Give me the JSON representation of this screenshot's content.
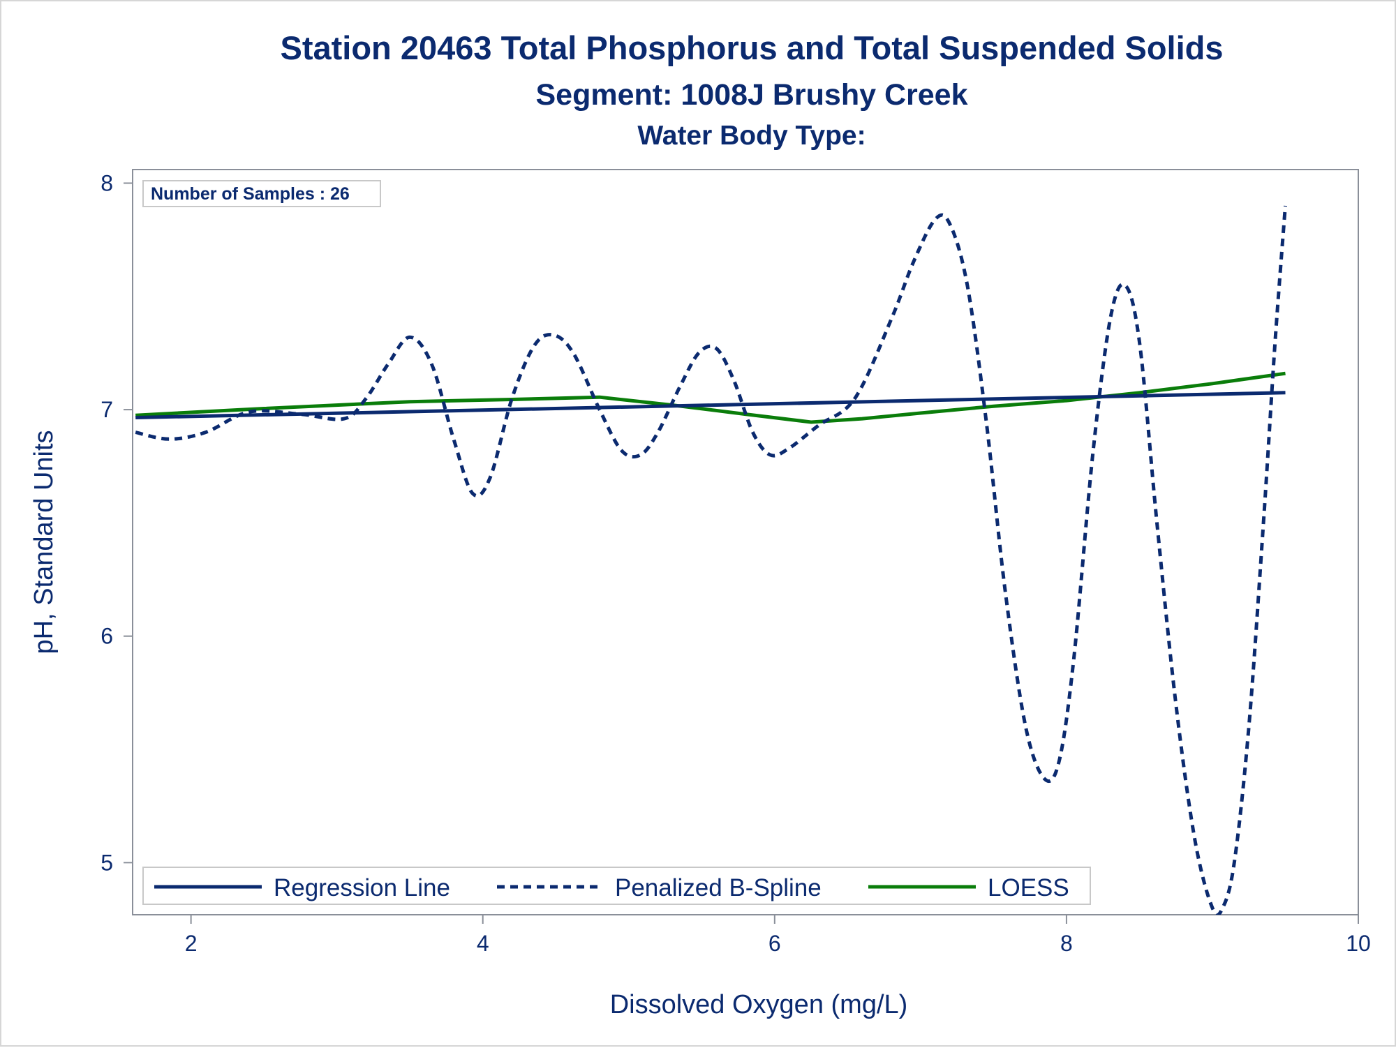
{
  "chart_data": {
    "type": "line",
    "title": "Station 20463  Total Phosphorus and Total Suspended Solids",
    "subtitle": "Segment: 1008J  Brushy Creek",
    "subtitle2": "Water Body Type:",
    "xlabel": "Dissolved Oxygen (mg/L)",
    "ylabel": "pH, Standard Units",
    "xlim": [
      1.6,
      10.0
    ],
    "ylim": [
      4.77,
      8.06
    ],
    "x_ticks": [
      2,
      4,
      6,
      8,
      10
    ],
    "y_ticks": [
      5,
      6,
      7,
      8
    ],
    "inset_label": "Number of Samples : 26",
    "legend": {
      "placement": "bottom-left",
      "entries": [
        {
          "label": "Regression Line",
          "style": "solid",
          "color": "#0b2a6f"
        },
        {
          "label": "Penalized B-Spline",
          "style": "dashed",
          "color": "#0b2a6f"
        },
        {
          "label": "LOESS",
          "style": "solid",
          "color": "#0a7d0a"
        }
      ]
    },
    "series": [
      {
        "name": "Regression Line",
        "style": "solid",
        "color": "#0b2a6f",
        "x": [
          1.62,
          9.5
        ],
        "y": [
          6.965,
          7.075
        ]
      },
      {
        "name": "Penalized B-Spline",
        "style": "dashed",
        "color": "#0b2a6f",
        "x": [
          1.62,
          1.85,
          2.1,
          2.4,
          2.75,
          3.05,
          3.2,
          3.35,
          3.5,
          3.65,
          3.8,
          3.93,
          4.05,
          4.2,
          4.35,
          4.48,
          4.62,
          4.8,
          4.95,
          5.08,
          5.2,
          5.35,
          5.48,
          5.6,
          5.72,
          5.85,
          5.97,
          6.1,
          6.3,
          6.55,
          6.8,
          6.95,
          7.1,
          7.2,
          7.32,
          7.45,
          7.58,
          7.72,
          7.85,
          7.95,
          8.05,
          8.18,
          8.3,
          8.4,
          8.5,
          8.62,
          8.75,
          8.88,
          9.0,
          9.07,
          9.15,
          9.25,
          9.35,
          9.43,
          9.5
        ],
        "y": [
          6.9,
          6.87,
          6.9,
          6.99,
          6.98,
          6.96,
          7.05,
          7.2,
          7.32,
          7.2,
          6.87,
          6.63,
          6.7,
          7.05,
          7.28,
          7.33,
          7.25,
          7.0,
          6.82,
          6.8,
          6.9,
          7.1,
          7.25,
          7.27,
          7.13,
          6.9,
          6.8,
          6.83,
          6.93,
          7.05,
          7.4,
          7.65,
          7.84,
          7.82,
          7.55,
          6.95,
          6.2,
          5.6,
          5.37,
          5.45,
          5.9,
          6.8,
          7.4,
          7.55,
          7.3,
          6.5,
          5.7,
          5.1,
          4.8,
          4.8,
          5.0,
          5.6,
          6.5,
          7.3,
          7.9
        ]
      },
      {
        "name": "LOESS",
        "style": "solid",
        "color": "#0a7d0a",
        "x": [
          1.62,
          2.5,
          3.5,
          4.2,
          4.8,
          5.3,
          5.8,
          6.25,
          6.6,
          7.0,
          7.5,
          8.0,
          8.5,
          9.0,
          9.5
        ],
        "y": [
          6.975,
          7.005,
          7.035,
          7.045,
          7.055,
          7.02,
          6.98,
          6.945,
          6.96,
          6.985,
          7.015,
          7.04,
          7.075,
          7.115,
          7.16
        ]
      }
    ]
  }
}
